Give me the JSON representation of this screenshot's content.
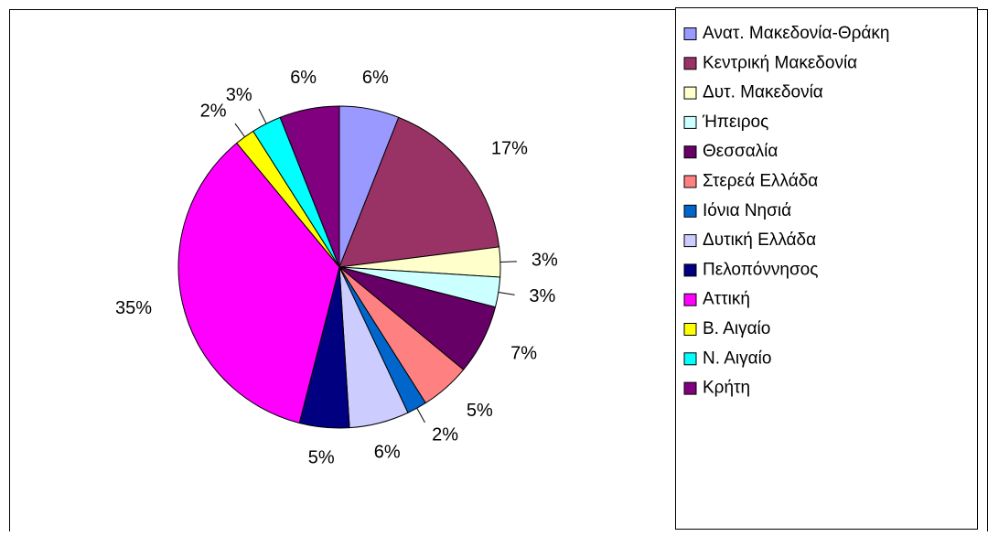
{
  "chart_data": {
    "type": "pie",
    "categories": [
      "Ανατ. Μακεδονία-Θράκη",
      "Κεντρική Μακεδονία",
      "Δυτ. Μακεδονία",
      "Ήπειρος",
      "Θεσσαλία",
      "Στερεά Ελλάδα",
      "Ιόνια Νησιά",
      "Δυτική Ελλάδα",
      "Πελοπόννησος",
      "Αττική",
      "Β. Αιγαίο",
      "Ν. Αιγαίο",
      "Κρήτη"
    ],
    "values": [
      6,
      17,
      3,
      3,
      7,
      5,
      2,
      6,
      5,
      35,
      2,
      3,
      6
    ],
    "value_labels": [
      "6%",
      "17%",
      "3%",
      "3%",
      "7%",
      "5%",
      "2%",
      "6%",
      "5%",
      "35%",
      "2%",
      "3%",
      "6%"
    ],
    "colors": [
      "#9999ff",
      "#993366",
      "#ffffcc",
      "#ccffff",
      "#660066",
      "#ff8080",
      "#0066cc",
      "#ccccff",
      "#000080",
      "#ff00ff",
      "#ffff00",
      "#00ffff",
      "#800080"
    ],
    "legend": "right"
  }
}
